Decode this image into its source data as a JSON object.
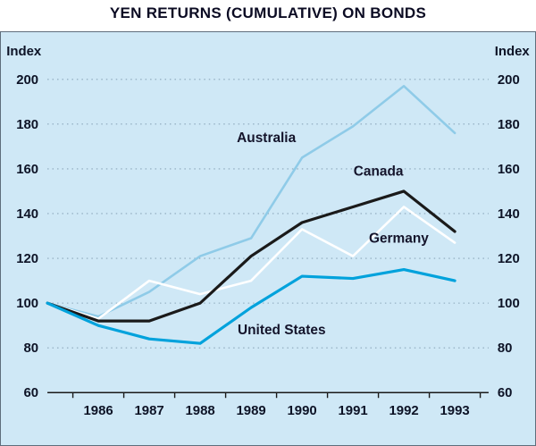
{
  "title": "YEN RETURNS (CUMULATIVE) ON BONDS",
  "chart_data": {
    "type": "line",
    "title": "YEN RETURNS (CUMULATIVE) ON BONDS",
    "y_axis_label_left": "Index",
    "y_axis_label_right": "Index",
    "ylim": [
      60,
      200
    ],
    "yticks": [
      60,
      80,
      100,
      120,
      140,
      160,
      180,
      200
    ],
    "grid": "horizontal-dotted",
    "x": [
      1985,
      1986,
      1987,
      1988,
      1989,
      1990,
      1991,
      1992,
      1993
    ],
    "x_tick_labels": [
      "1986",
      "1987",
      "1988",
      "1989",
      "1990",
      "1991",
      "1992",
      "1993"
    ],
    "legend_position": "inline-labels",
    "series": [
      {
        "name": "Australia",
        "color": "#8fcbe8",
        "width": 2.6,
        "values": [
          100,
          94,
          105,
          121,
          129,
          165,
          179,
          197,
          176
        ],
        "label": {
          "text": "Australia",
          "x": 1989.3,
          "y": 172
        }
      },
      {
        "name": "Germany",
        "color": "#ffffff",
        "width": 2.6,
        "values": [
          100,
          93,
          110,
          104,
          110,
          133,
          121,
          143,
          127
        ],
        "label": {
          "text": "Germany",
          "x": 1991.9,
          "y": 127
        }
      },
      {
        "name": "Canada",
        "color": "#1a1a1a",
        "width": 3.2,
        "values": [
          100,
          92,
          92,
          100,
          121,
          136,
          143,
          150,
          132
        ],
        "label": {
          "text": "Canada",
          "x": 1991.5,
          "y": 157
        }
      },
      {
        "name": "United States",
        "color": "#00a2dc",
        "width": 3.2,
        "values": [
          100,
          90,
          84,
          82,
          98,
          112,
          111,
          115,
          110
        ],
        "label": {
          "text": "United States",
          "x": 1989.6,
          "y": 86
        }
      }
    ]
  },
  "colors": {
    "panel_bg": "#cfe8f6",
    "grid": "#8ba6ba",
    "axis": "#1a1a1a",
    "text": "#0d1326",
    "title": "#0b0b23"
  }
}
